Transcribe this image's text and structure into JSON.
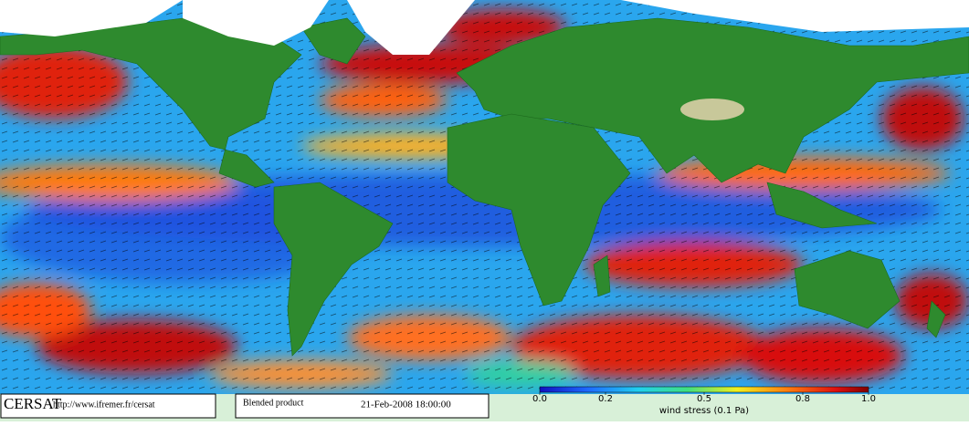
{
  "footer": {
    "logo": "CERSAT",
    "url": "http://www.ifremer.fr/cersat",
    "product": "Blended product",
    "timestamp": "21-Feb-2008 18:00:00"
  },
  "colorbar": {
    "label": "wind stress (0.1 Pa)",
    "range": [
      0,
      1
    ],
    "ticks": [
      {
        "value": 0,
        "label": "0.0"
      },
      0.2,
      0.5,
      0.8,
      {
        "value": 1,
        "label": "1.0"
      }
    ]
  }
}
